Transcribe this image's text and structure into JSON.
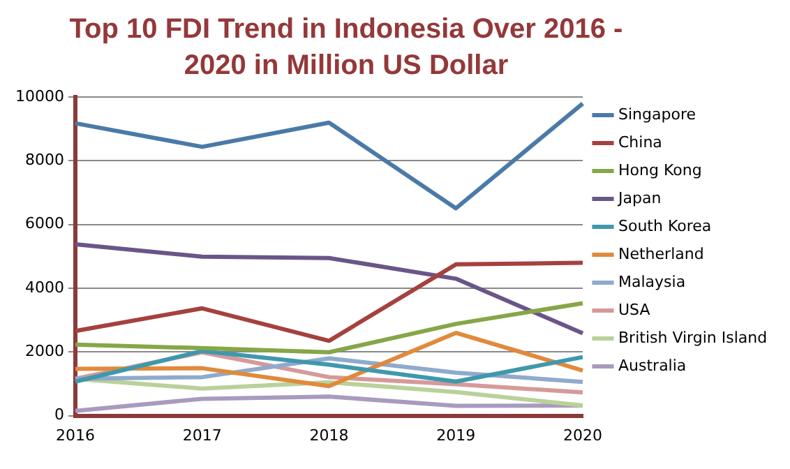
{
  "chart_data": {
    "type": "line",
    "title": "Top 10 FDI Trend in Indonesia Over 2016 - 2020 in Million US Dollar",
    "categories": [
      "2016",
      "2017",
      "2018",
      "2019",
      "2020"
    ],
    "ylim": [
      0,
      10000
    ],
    "yticks": [
      0,
      2000,
      4000,
      6000,
      8000,
      10000
    ],
    "grid": "y",
    "legend": "right",
    "marker": "none",
    "series": [
      {
        "name": "Singapore",
        "color": "#4a7aa8",
        "values": [
          9180,
          8440,
          9200,
          6510,
          9800
        ]
      },
      {
        "name": "China",
        "color": "#a5413e",
        "values": [
          2660,
          3370,
          2350,
          4750,
          4800
        ]
      },
      {
        "name": "Hong Kong",
        "color": "#86a648",
        "values": [
          2230,
          2120,
          1990,
          2880,
          3530
        ]
      },
      {
        "name": "Japan",
        "color": "#6a5588",
        "values": [
          5380,
          4990,
          4950,
          4300,
          2590
        ]
      },
      {
        "name": "South Korea",
        "color": "#3f98ad",
        "values": [
          1070,
          2030,
          1600,
          1070,
          1840
        ]
      },
      {
        "name": "Netherland",
        "color": "#e08a3c",
        "values": [
          1470,
          1490,
          930,
          2600,
          1420
        ]
      },
      {
        "name": "Malaysia",
        "color": "#8faacb",
        "values": [
          1160,
          1210,
          1800,
          1350,
          1060
        ]
      },
      {
        "name": "USA",
        "color": "#d6999a",
        "values": [
          1160,
          1990,
          1210,
          990,
          730
        ]
      },
      {
        "name": "British Virgin Island",
        "color": "#b9d19a",
        "values": [
          1160,
          850,
          1050,
          740,
          320
        ]
      },
      {
        "name": "Australia",
        "color": "#a89bbe",
        "values": [
          150,
          530,
          600,
          310,
          320
        ]
      }
    ]
  }
}
